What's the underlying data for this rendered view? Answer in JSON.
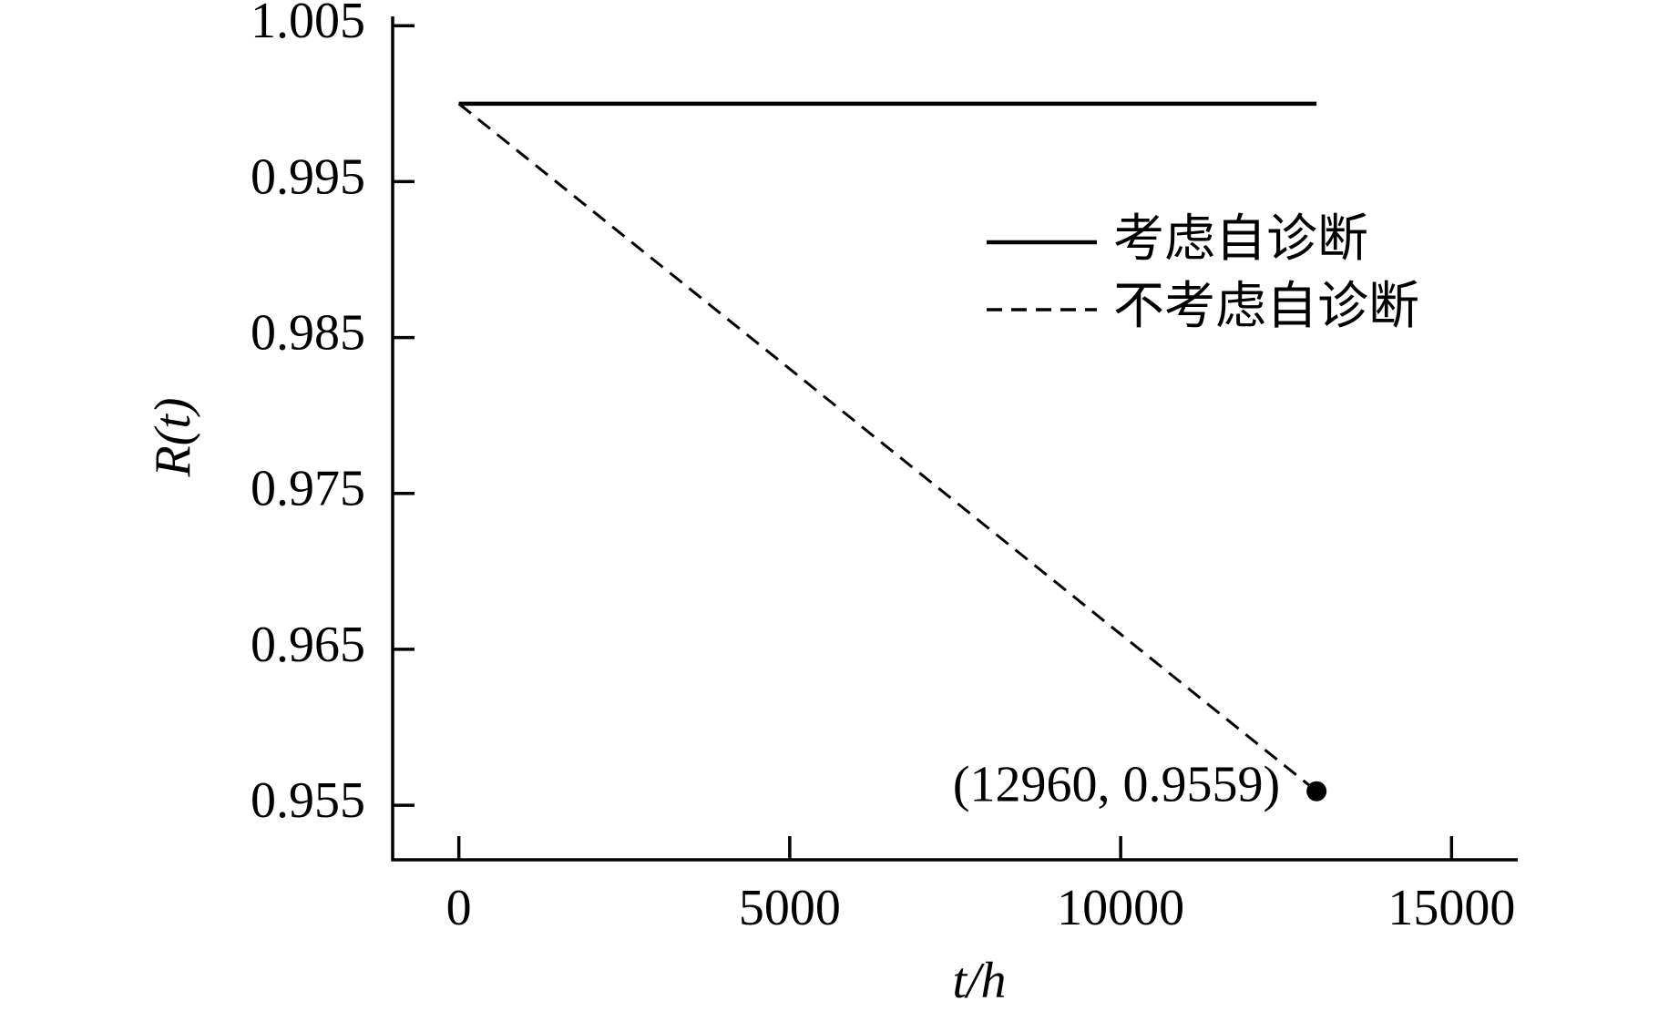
{
  "chart_data": {
    "type": "line",
    "x_label": "t/h",
    "y_label": "R(t)",
    "x": [
      0,
      12960
    ],
    "series": [
      {
        "name": "考虑自诊断",
        "color": "#000000",
        "style": "solid",
        "values": [
          1.0,
          1.0
        ]
      },
      {
        "name": "不考虑自诊断",
        "color": "#000000",
        "style": "dashed",
        "values": [
          1.0,
          0.9559
        ]
      }
    ],
    "annotation": "(12960, 0.9559)",
    "xlim": [
      -1000,
      16000
    ],
    "xticks": [
      0,
      5000,
      10000,
      15000
    ],
    "ylim": [
      0.9515,
      1.0056
    ],
    "yticks": [
      0.955,
      0.965,
      0.975,
      0.985,
      0.995,
      1.005
    ],
    "grid": false,
    "legend": "upper right"
  }
}
